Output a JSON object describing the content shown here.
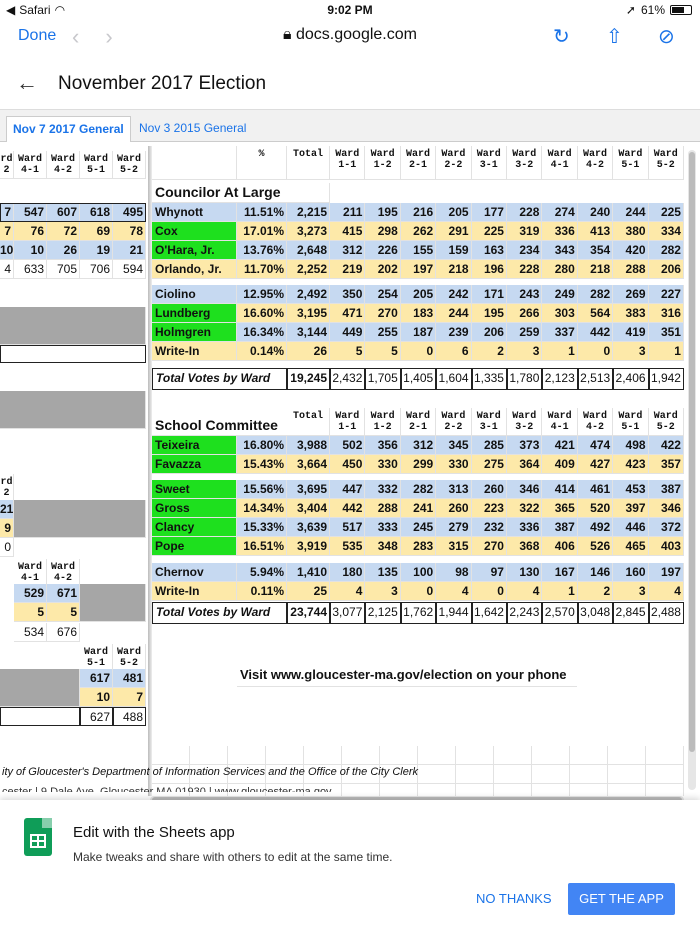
{
  "status": {
    "carrier": "Safari",
    "time": "9:02 PM",
    "battery": "61%",
    "battery_level": 0.61
  },
  "browser": {
    "done": "Done",
    "url": "docs.google.com"
  },
  "doc": {
    "title": "November 2017 Election"
  },
  "tabs": [
    "Nov 7 2017 General",
    "Nov 3 2015 General"
  ],
  "sheet": {
    "wards": [
      "1-1",
      "1-2",
      "2-1",
      "2-2",
      "3-1",
      "3-2",
      "4-1",
      "4-2",
      "5-1",
      "5-2"
    ],
    "ward_word": "Ward",
    "pct_header": "%",
    "total_header": "Total",
    "councilor": {
      "title": "Councilor At Large",
      "rows": [
        {
          "name": "Whynott",
          "pct": "11.51%",
          "total": "2,215",
          "v": [
            "211",
            "195",
            "216",
            "205",
            "177",
            "228",
            "274",
            "240",
            "244",
            "225"
          ],
          "color": "blue",
          "name_color": "blue"
        },
        {
          "name": "Cox",
          "pct": "17.01%",
          "total": "3,273",
          "v": [
            "415",
            "298",
            "262",
            "291",
            "225",
            "319",
            "336",
            "413",
            "380",
            "334"
          ],
          "color": "yellow",
          "name_color": "green"
        },
        {
          "name": "O'Hara, Jr.",
          "pct": "13.76%",
          "total": "2,648",
          "v": [
            "312",
            "226",
            "155",
            "159",
            "163",
            "234",
            "343",
            "354",
            "420",
            "282"
          ],
          "color": "blue",
          "name_color": "green"
        },
        {
          "name": "Orlando, Jr.",
          "pct": "11.70%",
          "total": "2,252",
          "v": [
            "219",
            "202",
            "197",
            "218",
            "196",
            "228",
            "280",
            "218",
            "288",
            "206"
          ],
          "color": "yellow",
          "name_color": "yellow"
        },
        {
          "name": "Ciolino",
          "pct": "12.95%",
          "total": "2,492",
          "v": [
            "350",
            "254",
            "205",
            "242",
            "171",
            "243",
            "249",
            "282",
            "269",
            "227"
          ],
          "color": "blue",
          "name_color": "blue"
        },
        {
          "name": "Lundberg",
          "pct": "16.60%",
          "total": "3,195",
          "v": [
            "471",
            "270",
            "183",
            "244",
            "195",
            "266",
            "303",
            "564",
            "383",
            "316"
          ],
          "color": "yellow",
          "name_color": "green"
        },
        {
          "name": "Holmgren",
          "pct": "16.34%",
          "total": "3,144",
          "v": [
            "449",
            "255",
            "187",
            "239",
            "206",
            "259",
            "337",
            "442",
            "419",
            "351"
          ],
          "color": "blue",
          "name_color": "green"
        },
        {
          "name": "Write-In",
          "pct": "0.14%",
          "total": "26",
          "v": [
            "5",
            "5",
            "0",
            "6",
            "2",
            "3",
            "1",
            "0",
            "3",
            "1"
          ],
          "color": "yellow",
          "name_color": "yellow"
        }
      ],
      "total_label": "Total Votes by Ward",
      "totals": [
        "19,245",
        "2,432",
        "1,705",
        "1,405",
        "1,604",
        "1,335",
        "1,780",
        "2,123",
        "2,513",
        "2,406",
        "1,942"
      ]
    },
    "school": {
      "title": "School Committee",
      "rows": [
        {
          "name": "Teixeira",
          "pct": "16.80%",
          "total": "3,988",
          "v": [
            "502",
            "356",
            "312",
            "345",
            "285",
            "373",
            "421",
            "474",
            "498",
            "422"
          ],
          "color": "blue",
          "name_color": "green"
        },
        {
          "name": "Favazza",
          "pct": "15.43%",
          "total": "3,664",
          "v": [
            "450",
            "330",
            "299",
            "330",
            "275",
            "364",
            "409",
            "427",
            "423",
            "357"
          ],
          "color": "yellow",
          "name_color": "green"
        },
        {
          "name": "Sweet",
          "pct": "15.56%",
          "total": "3,695",
          "v": [
            "447",
            "332",
            "282",
            "313",
            "260",
            "346",
            "414",
            "461",
            "453",
            "387"
          ],
          "color": "blue",
          "name_color": "green"
        },
        {
          "name": "Gross",
          "pct": "14.34%",
          "total": "3,404",
          "v": [
            "442",
            "288",
            "241",
            "260",
            "223",
            "322",
            "365",
            "520",
            "397",
            "346"
          ],
          "color": "yellow",
          "name_color": "green"
        },
        {
          "name": "Clancy",
          "pct": "15.33%",
          "total": "3,639",
          "v": [
            "517",
            "333",
            "245",
            "279",
            "232",
            "336",
            "387",
            "492",
            "446",
            "372"
          ],
          "color": "blue",
          "name_color": "green"
        },
        {
          "name": "Pope",
          "pct": "16.51%",
          "total": "3,919",
          "v": [
            "535",
            "348",
            "283",
            "315",
            "270",
            "368",
            "406",
            "526",
            "465",
            "403"
          ],
          "color": "yellow",
          "name_color": "green"
        },
        {
          "name": "Chernov",
          "pct": "5.94%",
          "total": "1,410",
          "v": [
            "180",
            "135",
            "100",
            "98",
            "97",
            "130",
            "167",
            "146",
            "160",
            "197"
          ],
          "color": "blue",
          "name_color": "blue"
        },
        {
          "name": "Write-In",
          "pct": "0.11%",
          "total": "25",
          "v": [
            "4",
            "3",
            "0",
            "4",
            "0",
            "4",
            "1",
            "2",
            "3",
            "4"
          ],
          "color": "yellow",
          "name_color": "yellow"
        }
      ],
      "total_label": "Total Votes by Ward",
      "totals": [
        "23,744",
        "3,077",
        "2,125",
        "1,762",
        "1,944",
        "1,642",
        "2,243",
        "2,570",
        "3,048",
        "2,845",
        "2,488"
      ]
    },
    "visit": "Visit www.gloucester-ma.gov/election on your phone",
    "frozen": {
      "top_hdr": [
        [
          "rd",
          "2"
        ],
        [
          "Ward",
          "4-1"
        ],
        [
          "Ward",
          "4-2"
        ],
        [
          "Ward",
          "5-1"
        ],
        [
          "Ward",
          "5-2"
        ]
      ],
      "r1": [
        "7",
        "547",
        "607",
        "618",
        "495"
      ],
      "r2": [
        "7",
        "76",
        "72",
        "69",
        "78"
      ],
      "r3": [
        "10",
        "10",
        "26",
        "19",
        "21"
      ],
      "r4": [
        "4",
        "633",
        "705",
        "706",
        "594"
      ],
      "mid_hdr": [
        "rd",
        "2"
      ],
      "mid_vals": [
        "21",
        "9",
        "0"
      ],
      "w4_hdr": [
        [
          "Ward",
          "4-1"
        ],
        [
          "Ward",
          "4-2"
        ]
      ],
      "w4_r1": [
        "529",
        "671"
      ],
      "w4_r2": [
        "5",
        "5"
      ],
      "w4_r3": [
        "534",
        "676"
      ],
      "w5_hdr": [
        [
          "Ward",
          "5-1"
        ],
        [
          "Ward",
          "5-2"
        ]
      ],
      "w5_r1": [
        "617",
        "481"
      ],
      "w5_r2": [
        "10",
        "7"
      ],
      "w5_r3": [
        "627",
        "488"
      ]
    },
    "footer": "ity of Gloucester's Department of Information Services and the Office of the City Clerk",
    "footer2": "cester | 9 Dale Ave, Gloucester MA 01930 | www.gloucester-ma.gov"
  },
  "banner": {
    "title": "Edit with the Sheets app",
    "subtitle": "Make tweaks and share with others to edit at the same time.",
    "no_thanks": "NO THANKS",
    "get_app": "GET THE APP"
  }
}
